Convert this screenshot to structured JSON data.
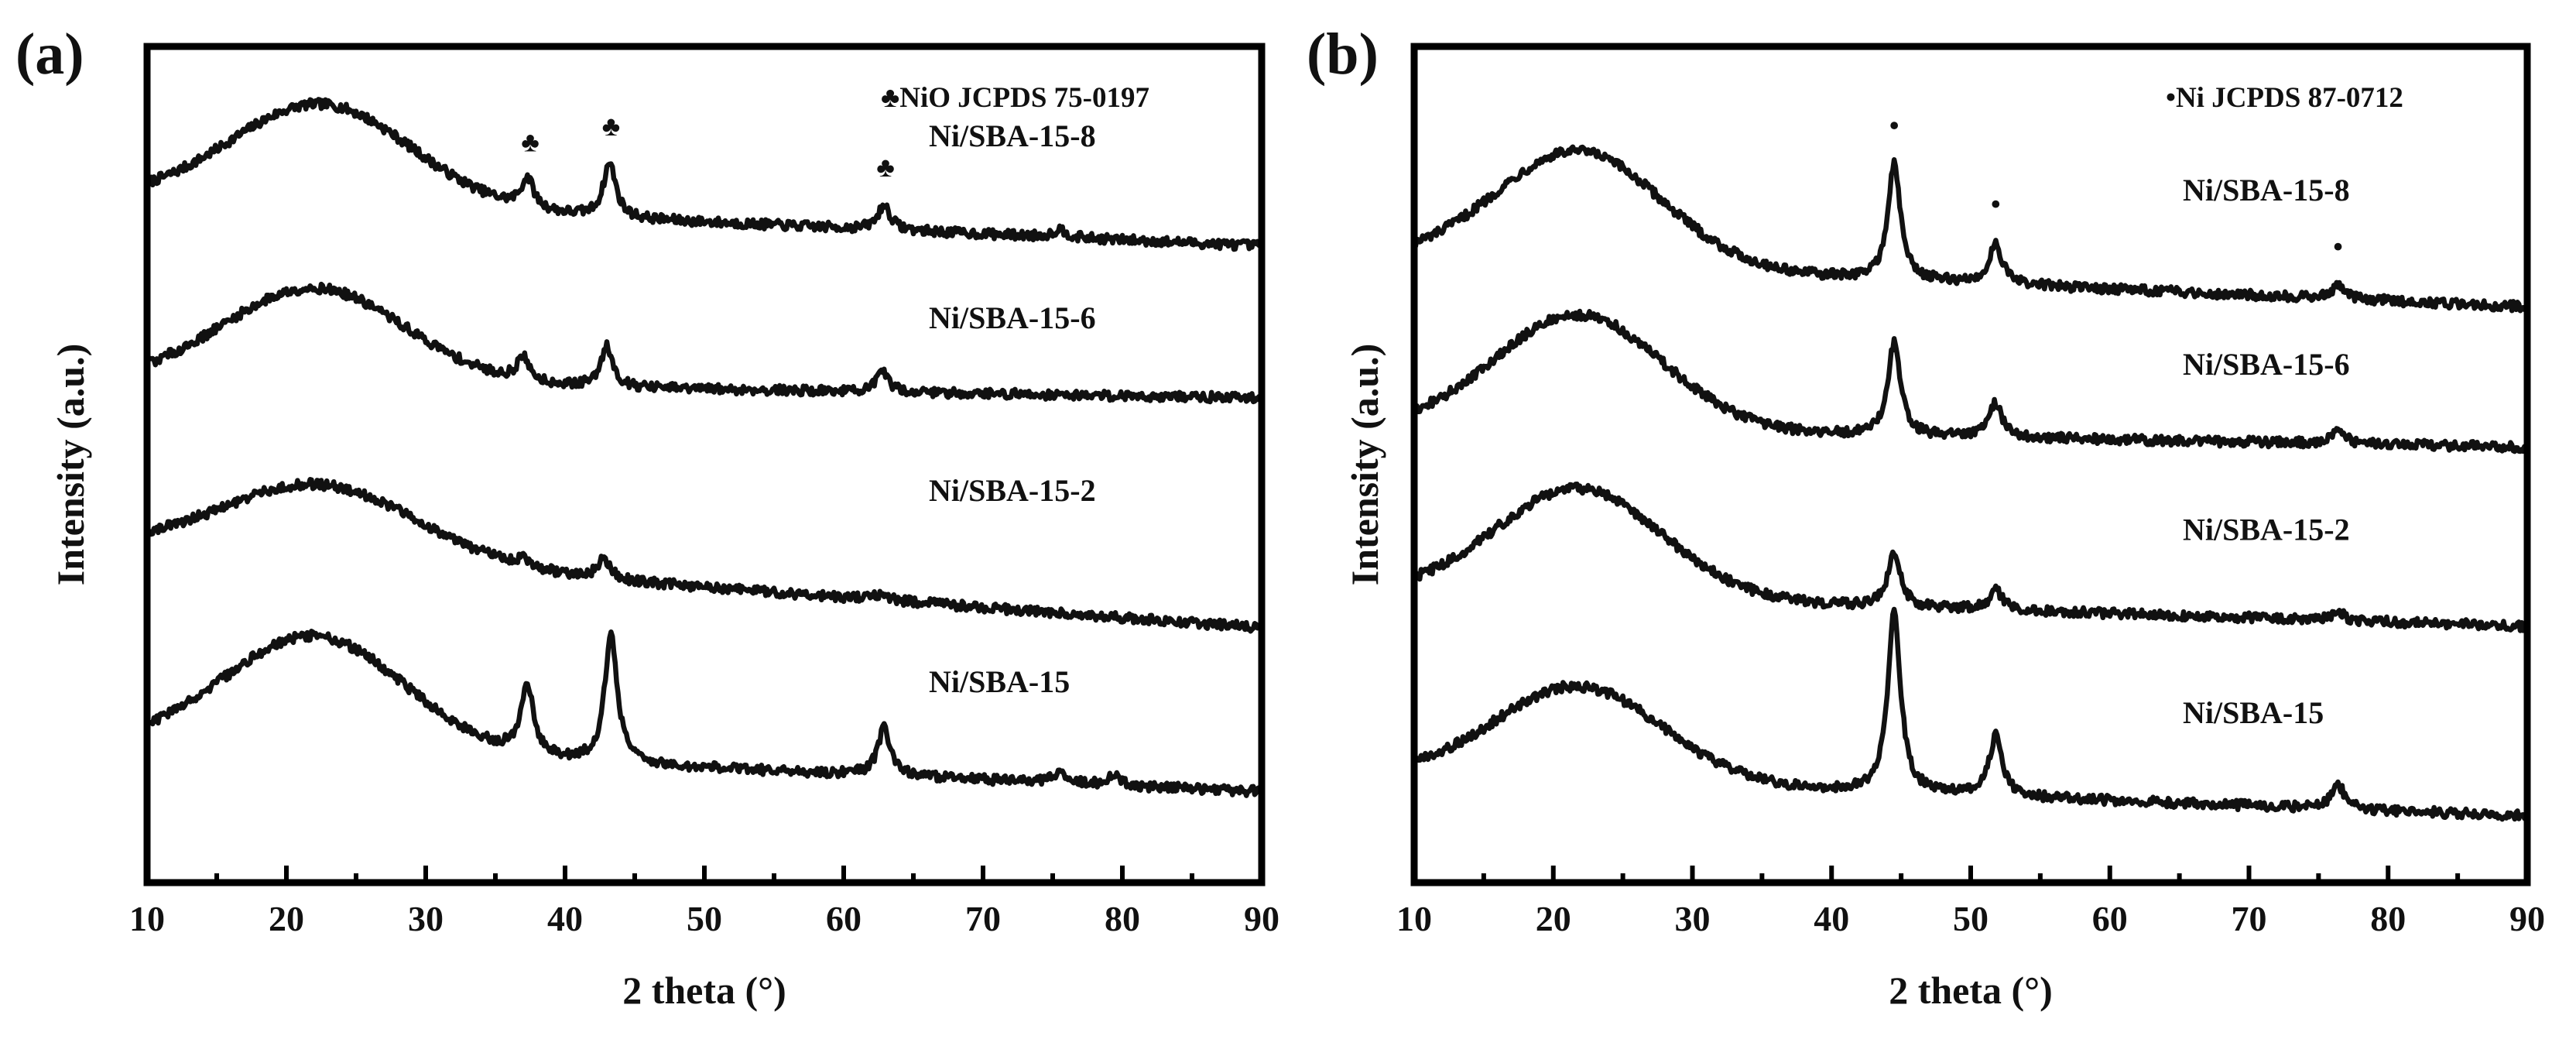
{
  "chart_data": [
    {
      "type": "line",
      "panel_label": "(a)",
      "title": "",
      "xlabel": "2 theta (°)",
      "ylabel": "Intensity (a.u.)",
      "xlim": [
        10,
        90
      ],
      "x_ticks": [
        10,
        20,
        30,
        40,
        50,
        60,
        70,
        80,
        90
      ],
      "y_ticks_shown": false,
      "grid": false,
      "legend": {
        "marker": "♣",
        "text": "NiO JCPDS 75-0197",
        "placement": "top-right"
      },
      "series": [
        {
          "name": "Ni/SBA-15-8",
          "offset": 3.0,
          "base": 0.05,
          "end_level": -0.3,
          "amorphous_hump": {
            "center": 22.5,
            "height": 0.75,
            "width": 6.5
          },
          "peaks": [
            {
              "x": 37.3,
              "height": 0.22
            },
            {
              "x": 43.2,
              "height": 0.4
            },
            {
              "x": 62.9,
              "height": 0.18
            },
            {
              "x": 75.5,
              "height": 0.06
            }
          ]
        },
        {
          "name": "Ni/SBA-15-6",
          "offset": 2.0,
          "base": 0.05,
          "end_level": -0.08,
          "amorphous_hump": {
            "center": 22.0,
            "height": 0.7,
            "width": 6.5
          },
          "peaks": [
            {
              "x": 37.0,
              "height": 0.17
            },
            {
              "x": 43.0,
              "height": 0.3
            },
            {
              "x": 62.8,
              "height": 0.14
            }
          ]
        },
        {
          "name": "Ni/SBA-15-2",
          "offset": 1.05,
          "base": 0.1,
          "end_level": -0.5,
          "amorphous_hump": {
            "center": 22.5,
            "height": 0.55,
            "width": 7.0
          },
          "peaks": [
            {
              "x": 37.0,
              "height": 0.06
            },
            {
              "x": 42.8,
              "height": 0.15
            },
            {
              "x": 62.8,
              "height": 0.05
            }
          ]
        },
        {
          "name": "Ni/SBA-15",
          "offset": 0.0,
          "base": 0.05,
          "end_level": -0.3,
          "amorphous_hump": {
            "center": 22.0,
            "height": 0.85,
            "width": 6.5
          },
          "peaks": [
            {
              "x": 37.3,
              "height": 0.5
            },
            {
              "x": 43.3,
              "height": 0.95
            },
            {
              "x": 62.9,
              "height": 0.35
            },
            {
              "x": 75.5,
              "height": 0.08
            },
            {
              "x": 79.4,
              "height": 0.07
            }
          ]
        }
      ],
      "markers": [
        {
          "x": 37.5,
          "glyph": "♣",
          "series": "Ni/SBA-15-8"
        },
        {
          "x": 43.3,
          "glyph": "♣",
          "series": "Ni/SBA-15-8"
        },
        {
          "x": 63.0,
          "glyph": "♣",
          "series": "Ni/SBA-15-8"
        }
      ]
    },
    {
      "type": "line",
      "panel_label": "(b)",
      "title": "",
      "xlabel": "2 theta (°)",
      "ylabel": "Intensity (a.u.)",
      "xlim": [
        10,
        90
      ],
      "x_ticks": [
        10,
        20,
        30,
        40,
        50,
        60,
        70,
        80,
        90
      ],
      "y_ticks_shown": false,
      "grid": false,
      "legend": {
        "marker": "•",
        "text": "Ni JCPDS 87-0712",
        "placement": "top-right"
      },
      "series": [
        {
          "name": "Ni/SBA-15-8",
          "offset": 3.0,
          "base": 0.0,
          "end_level": -0.35,
          "amorphous_hump": {
            "center": 21.8,
            "height": 0.85,
            "width": 6.0
          },
          "peaks": [
            {
              "x": 44.5,
              "height": 0.85
            },
            {
              "x": 51.8,
              "height": 0.3
            },
            {
              "x": 76.4,
              "height": 0.1
            }
          ]
        },
        {
          "name": "Ni/SBA-15-6",
          "offset": 2.0,
          "base": 0.05,
          "end_level": -0.1,
          "amorphous_hump": {
            "center": 21.8,
            "height": 0.85,
            "width": 6.0
          },
          "peaks": [
            {
              "x": 44.5,
              "height": 0.68
            },
            {
              "x": 51.8,
              "height": 0.25
            },
            {
              "x": 76.4,
              "height": 0.1
            }
          ]
        },
        {
          "name": "Ni/SBA-15-2",
          "offset": 1.05,
          "base": 0.05,
          "end_level": -0.2,
          "amorphous_hump": {
            "center": 21.8,
            "height": 0.8,
            "width": 6.0
          },
          "peaks": [
            {
              "x": 44.5,
              "height": 0.4
            },
            {
              "x": 51.8,
              "height": 0.15
            },
            {
              "x": 76.4,
              "height": 0.06
            }
          ]
        },
        {
          "name": "Ni/SBA-15",
          "offset": 0.0,
          "base": 0.05,
          "end_level": -0.25,
          "amorphous_hump": {
            "center": 21.8,
            "height": 0.7,
            "width": 6.0
          },
          "peaks": [
            {
              "x": 44.5,
              "height": 1.35
            },
            {
              "x": 51.8,
              "height": 0.45
            },
            {
              "x": 76.4,
              "height": 0.18
            }
          ]
        }
      ],
      "markers": [
        {
          "x": 44.5,
          "glyph": "•",
          "series": "Ni/SBA-15-8"
        },
        {
          "x": 51.8,
          "glyph": "•",
          "series": "Ni/SBA-15-8"
        },
        {
          "x": 76.4,
          "glyph": "•",
          "series": "Ni/SBA-15-8"
        }
      ]
    }
  ]
}
